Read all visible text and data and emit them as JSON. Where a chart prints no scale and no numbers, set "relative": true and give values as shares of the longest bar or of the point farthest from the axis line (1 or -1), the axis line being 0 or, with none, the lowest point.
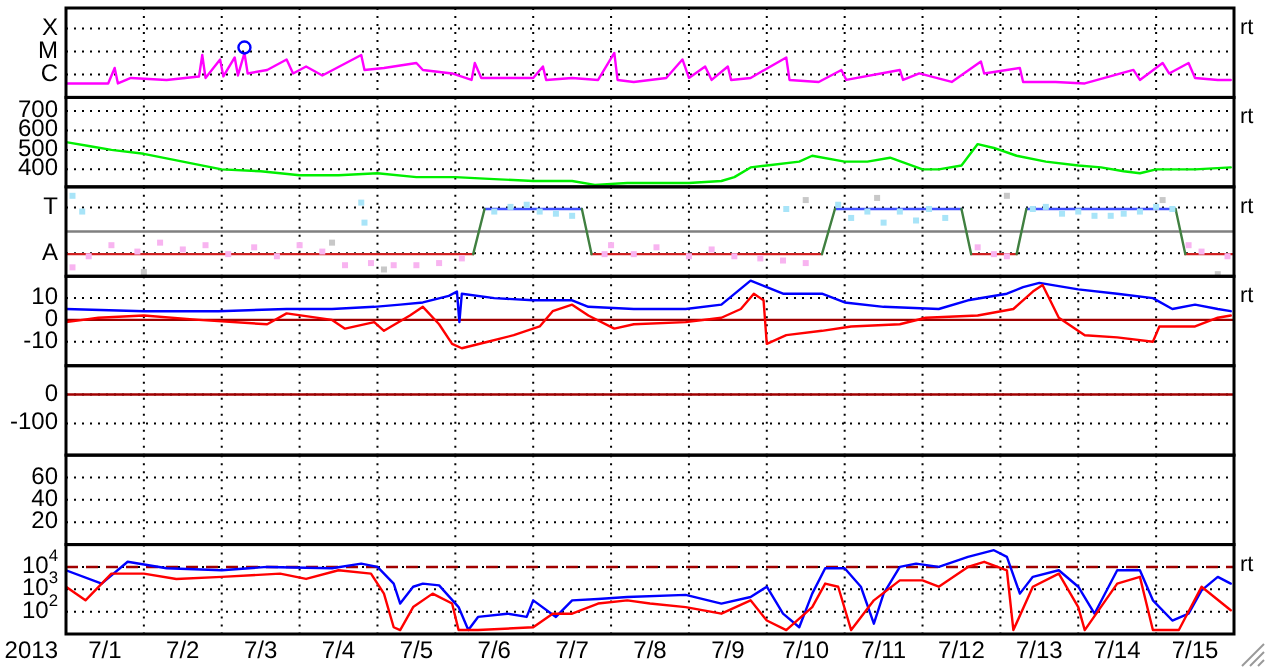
{
  "chart_data": [
    {
      "type": "line",
      "xlim": [
        "2013-07-01T00:00",
        "2013-07-16T00:00"
      ],
      "relative": true,
      "grid": true,
      "tick_labels": "y",
      "annotations": [
        "rt",
        "C",
        "M",
        "X"
      ],
      "xticks": [
        {
          "value": "2013-07-02T00:00",
          "label": null
        },
        {
          "value": "2013-07-03T00:00",
          "label": null
        },
        {
          "value": "2013-07-04T00:00",
          "label": null
        },
        {
          "value": "2013-07-05T00:00",
          "label": null
        },
        {
          "value": "2013-07-06T00:00",
          "label": null
        },
        {
          "value": "2013-07-07T00:00",
          "label": null
        },
        {
          "value": "2013-07-08T00:00",
          "label": null
        },
        {
          "value": "2013-07-09T00:00",
          "label": null
        },
        {
          "value": "2013-07-10T00:00",
          "label": null
        },
        {
          "value": "2013-07-11T00:00",
          "label": null
        },
        {
          "value": "2013-07-12T00:00",
          "label": null
        },
        {
          "value": "2013-07-13T00:00",
          "label": null
        },
        {
          "value": "2013-07-14T00:00",
          "label": null
        },
        {
          "value": "2013-07-15T00:00",
          "label": null
        }
      ],
      "series": [
        {
          "color": "#ff00ff",
          "x": [
            "2013-07-01T00:00",
            "2013-07-01T13:00",
            "2013-07-01T15:00",
            "2013-07-01T16:00",
            "2013-07-01T20:00",
            "2013-07-02T07:00",
            "2013-07-02T17:00",
            "2013-07-02T18:00",
            "2013-07-02T19:00",
            "2013-07-02T23:30",
            "2013-07-03T00:30",
            "2013-07-03T04:00",
            "2013-07-03T05:00",
            "2013-07-03T07:00",
            "2013-07-03T08:00",
            "2013-07-03T14:00",
            "2013-07-03T20:00",
            "2013-07-03T22:00",
            "2013-07-04T02:00",
            "2013-07-04T07:00",
            "2013-07-04T19:00",
            "2013-07-04T20:00",
            "2013-07-05T02:00",
            "2013-07-05T12:00",
            "2013-07-05T14:00",
            "2013-07-05T23:00",
            "2013-07-06T05:00",
            "2013-07-06T06:00",
            "2013-07-06T08:00",
            "2013-07-07T00:00",
            "2013-07-07T03:00",
            "2013-07-07T04:00",
            "2013-07-07T12:00",
            "2013-07-07T20:00",
            "2013-07-08T01:00",
            "2013-07-08T02:00",
            "2013-07-08T07:00",
            "2013-07-08T17:00",
            "2013-07-08T22:00",
            "2013-07-09T00:00",
            "2013-07-09T05:00",
            "2013-07-09T07:00",
            "2013-07-09T12:00",
            "2013-07-09T13:00",
            "2013-07-09T19:00",
            "2013-07-10T06:00",
            "2013-07-10T07:00",
            "2013-07-10T16:00",
            "2013-07-10T23:00",
            "2013-07-11T00:30",
            "2013-07-11T17:00",
            "2013-07-11T18:00",
            "2013-07-11T23:00",
            "2013-07-12T09:00",
            "2013-07-12T18:00",
            "2013-07-12T19:00",
            "2013-07-13T06:00",
            "2013-07-13T07:00",
            "2013-07-13T17:00",
            "2013-07-14T02:00",
            "2013-07-14T17:00",
            "2013-07-14T19:00",
            "2013-07-15T02:00",
            "2013-07-15T04:00",
            "2013-07-15T10:00",
            "2013-07-15T12:00",
            "2013-07-15T19:00",
            "2013-07-15T23:00"
          ],
          "values": [
            0.28,
            0.28,
            0.59,
            0.28,
            0.39,
            0.35,
            0.42,
            0.85,
            0.39,
            0.76,
            0.42,
            0.8,
            0.44,
            0.89,
            0.48,
            0.55,
            0.76,
            0.48,
            0.62,
            0.44,
            0.85,
            0.55,
            0.59,
            0.69,
            0.55,
            0.48,
            0.35,
            0.69,
            0.39,
            0.39,
            0.62,
            0.35,
            0.39,
            0.35,
            0.89,
            0.35,
            0.31,
            0.39,
            0.76,
            0.39,
            0.62,
            0.35,
            0.62,
            0.35,
            0.39,
            0.8,
            0.35,
            0.31,
            0.55,
            0.35,
            0.55,
            0.35,
            0.48,
            0.31,
            0.72,
            0.48,
            0.59,
            0.31,
            0.31,
            0.28,
            0.55,
            0.35,
            0.69,
            0.48,
            0.69,
            0.39,
            0.35,
            0.35
          ]
        },
        {
          "type": "scatter",
          "marker": "circle",
          "color": "#0000ff",
          "x": [
            "2013-07-03T07:00"
          ],
          "values": [
            1
          ]
        }
      ]
    },
    {
      "type": "line",
      "xlim": [
        "2013-07-01T00:00",
        "2013-07-16T00:00"
      ],
      "ylim": [
        310,
        770
      ],
      "grid": true,
      "tick_labels": "y",
      "annotations": [
        "rt"
      ],
      "xticks": [
        {
          "value": "2013-07-02T00:00",
          "label": null
        },
        {
          "value": "2013-07-03T00:00",
          "label": null
        },
        {
          "value": "2013-07-04T00:00",
          "label": null
        },
        {
          "value": "2013-07-05T00:00",
          "label": null
        },
        {
          "value": "2013-07-06T00:00",
          "label": null
        },
        {
          "value": "2013-07-07T00:00",
          "label": null
        },
        {
          "value": "2013-07-08T00:00",
          "label": null
        },
        {
          "value": "2013-07-09T00:00",
          "label": null
        },
        {
          "value": "2013-07-10T00:00",
          "label": null
        },
        {
          "value": "2013-07-11T00:00",
          "label": null
        },
        {
          "value": "2013-07-12T00:00",
          "label": null
        },
        {
          "value": "2013-07-13T00:00",
          "label": null
        },
        {
          "value": "2013-07-14T00:00",
          "label": null
        },
        {
          "value": "2013-07-15T00:00",
          "label": null
        }
      ],
      "yticks": [
        400,
        500,
        600,
        700
      ],
      "series": [
        {
          "color": "#00ee00",
          "x": [
            "2013-07-01T00:00",
            "2013-07-01T07:00",
            "2013-07-01T14:00",
            "2013-07-02T00:00",
            "2013-07-02T12:00",
            "2013-07-03T00:00",
            "2013-07-03T12:00",
            "2013-07-04T00:00",
            "2013-07-04T12:00",
            "2013-07-05T00:00",
            "2013-07-05T12:00",
            "2013-07-06T00:00",
            "2013-07-06T12:00",
            "2013-07-07T00:00",
            "2013-07-07T12:00",
            "2013-07-07T19:00",
            "2013-07-08T05:00",
            "2013-07-08T12:00",
            "2013-07-09T00:00",
            "2013-07-09T10:00",
            "2013-07-09T14:00",
            "2013-07-09T19:00",
            "2013-07-10T00:00",
            "2013-07-10T10:00",
            "2013-07-10T14:00",
            "2013-07-11T00:00",
            "2013-07-11T07:00",
            "2013-07-11T14:00",
            "2013-07-12T00:00",
            "2013-07-12T05:00",
            "2013-07-12T12:00",
            "2013-07-12T17:00",
            "2013-07-12T22:00",
            "2013-07-13T05:00",
            "2013-07-13T14:00",
            "2013-07-14T00:00",
            "2013-07-14T07:00",
            "2013-07-14T14:00",
            "2013-07-14T19:00",
            "2013-07-15T00:00",
            "2013-07-15T12:00",
            "2013-07-15T23:00"
          ],
          "values": [
            540,
            520,
            500,
            480,
            440,
            400,
            390,
            370,
            370,
            380,
            360,
            360,
            350,
            340,
            340,
            320,
            330,
            330,
            330,
            340,
            360,
            410,
            420,
            440,
            470,
            440,
            440,
            460,
            400,
            400,
            420,
            530,
            510,
            470,
            440,
            420,
            410,
            390,
            380,
            400,
            400,
            410
          ]
        }
      ]
    },
    {
      "type": "line",
      "xlim": [
        "2013-07-01T00:00",
        "2013-07-16T00:00"
      ],
      "relative": true,
      "grid": true,
      "tick_labels": "y",
      "annotations": [
        "rt",
        "A",
        "T"
      ],
      "xticks": [
        {
          "value": "2013-07-02T00:00",
          "label": null
        },
        {
          "value": "2013-07-03T00:00",
          "label": null
        },
        {
          "value": "2013-07-04T00:00",
          "label": null
        },
        {
          "value": "2013-07-05T00:00",
          "label": null
        },
        {
          "value": "2013-07-06T00:00",
          "label": null
        },
        {
          "value": "2013-07-07T00:00",
          "label": null
        },
        {
          "value": "2013-07-08T00:00",
          "label": null
        },
        {
          "value": "2013-07-09T00:00",
          "label": null
        },
        {
          "value": "2013-07-10T00:00",
          "label": null
        },
        {
          "value": "2013-07-11T00:00",
          "label": null
        },
        {
          "value": "2013-07-12T00:00",
          "label": null
        },
        {
          "value": "2013-07-13T00:00",
          "label": null
        },
        {
          "value": "2013-07-14T00:00",
          "label": null
        },
        {
          "value": "2013-07-15T00:00",
          "label": null
        }
      ],
      "ref_lines": [
        {
          "axis": "y",
          "value": 0,
          "color": "#808080"
        }
      ],
      "series": [
        {
          "type": "scatter",
          "marker": "square",
          "color": "#f8b4f0",
          "x": [
            "2013-07-01T02:00",
            "2013-07-01T07:00",
            "2013-07-01T14:00",
            "2013-07-01T22:00",
            "2013-07-02T05:00",
            "2013-07-02T12:00",
            "2013-07-02T19:00",
            "2013-07-03T02:00",
            "2013-07-03T10:00",
            "2013-07-03T17:00",
            "2013-07-04T00:00",
            "2013-07-04T07:00",
            "2013-07-04T14:00",
            "2013-07-04T22:00",
            "2013-07-05T05:00",
            "2013-07-05T12:00",
            "2013-07-05T19:00",
            "2013-07-06T02:00",
            "2013-07-07T22:00",
            "2013-07-08T00:00",
            "2013-07-08T07:00",
            "2013-07-08T14:00",
            "2013-07-09T00:00",
            "2013-07-09T07:00",
            "2013-07-09T14:00",
            "2013-07-09T22:00",
            "2013-07-10T05:00",
            "2013-07-10T12:00",
            "2013-07-12T17:00",
            "2013-07-12T22:00",
            "2013-07-13T02:00",
            "2013-07-15T10:00",
            "2013-07-15T14:00",
            "2013-07-15T22:00"
          ],
          "values": [
            -0.84,
            -0.58,
            -0.32,
            -0.47,
            -0.26,
            -0.42,
            -0.32,
            -0.53,
            -0.37,
            -0.58,
            -0.32,
            -0.47,
            -0.79,
            -0.74,
            -0.79,
            -0.79,
            -0.74,
            -0.63,
            -0.53,
            -0.32,
            -0.53,
            -0.37,
            -0.58,
            -0.42,
            -0.58,
            -0.63,
            -0.68,
            -0.74,
            -0.37,
            -0.53,
            -0.58,
            -0.32,
            -0.47,
            -0.58
          ]
        },
        {
          "type": "scatter",
          "marker": "square",
          "color": "#a8e4f8",
          "x": [
            "2013-07-01T02:00",
            "2013-07-01T05:00",
            "2013-07-04T19:00",
            "2013-07-04T20:00",
            "2013-07-06T12:00",
            "2013-07-06T17:00",
            "2013-07-06T22:00",
            "2013-07-07T02:00",
            "2013-07-07T07:00",
            "2013-07-07T12:00",
            "2013-07-10T06:00",
            "2013-07-10T22:00",
            "2013-07-11T02:00",
            "2013-07-11T07:00",
            "2013-07-11T12:00",
            "2013-07-11T17:00",
            "2013-07-11T22:00",
            "2013-07-12T02:00",
            "2013-07-12T07:00",
            "2013-07-13T10:00",
            "2013-07-13T14:00",
            "2013-07-13T19:00",
            "2013-07-14T00:00",
            "2013-07-14T05:00",
            "2013-07-14T10:00",
            "2013-07-14T14:00",
            "2013-07-14T19:00",
            "2013-07-15T00:00",
            "2013-07-15T05:00"
          ],
          "values": [
            0.84,
            0.47,
            0.68,
            0.21,
            0.47,
            0.58,
            0.63,
            0.47,
            0.42,
            0.37,
            0.53,
            0.63,
            0.32,
            0.47,
            0.21,
            0.47,
            0.26,
            0.53,
            0.32,
            0.53,
            0.58,
            0.42,
            0.47,
            0.37,
            0.37,
            0.42,
            0.47,
            0.58,
            0.53
          ]
        },
        {
          "type": "scatter",
          "marker": "square",
          "color": "#c8c8c8",
          "x": [
            "2013-07-02T00:00",
            "2013-07-04T10:00",
            "2013-07-05T02:00",
            "2013-07-10T12:00",
            "2013-07-11T10:00",
            "2013-07-13T02:00",
            "2013-07-15T02:00",
            "2013-07-15T19:00"
          ],
          "values": [
            -0.95,
            -0.26,
            -0.89,
            0.74,
            0.79,
            0.84,
            0.74,
            -1
          ]
        },
        {
          "color": "#d02020",
          "x": [
            "2013-07-01T00:00",
            "2013-07-06T05:30",
            "2013-07-06T06:00",
            "2013-07-07T18:00",
            "2013-07-10T17:00",
            "2013-07-10T18:00",
            "2013-07-12T15:00",
            "2013-07-13T05:00",
            "2013-07-13T06:00",
            "2013-07-15T09:00",
            "2013-07-16T00:00"
          ],
          "values": [
            -0.53,
            -0.53,
            null,
            -0.53,
            -0.53,
            null,
            -0.53,
            -0.53,
            null,
            -0.53,
            -0.53
          ]
        },
        {
          "color": "#4050ff",
          "x": [
            "2013-07-06T09:00",
            "2013-07-07T15:00",
            "2013-07-07T16:00",
            "2013-07-10T21:00",
            "2013-07-12T12:00",
            "2013-07-12T13:00",
            "2013-07-13T08:00",
            "2013-07-15T06:00"
          ],
          "values": [
            0.53,
            0.53,
            null,
            0.53,
            0.53,
            null,
            0.53,
            0.53
          ]
        },
        {
          "color": "#408040",
          "x": [
            "2013-07-06T05:30",
            "2013-07-06T09:00",
            "2013-07-06T10:00",
            "2013-07-07T15:00",
            "2013-07-07T18:00",
            "2013-07-07T19:00",
            "2013-07-10T17:00",
            "2013-07-10T21:00",
            "2013-07-10T22:00",
            "2013-07-12T12:00",
            "2013-07-12T15:00",
            "2013-07-12T16:00",
            "2013-07-13T05:00",
            "2013-07-13T08:00",
            "2013-07-13T09:00",
            "2013-07-15T06:00",
            "2013-07-15T09:00"
          ],
          "values": [
            -0.53,
            0.53,
            null,
            0.53,
            -0.53,
            null,
            -0.53,
            0.53,
            null,
            0.53,
            -0.53,
            null,
            -0.53,
            0.53,
            null,
            0.53,
            -0.53
          ]
        }
      ]
    },
    {
      "type": "line",
      "xlim": [
        "2013-07-01T00:00",
        "2013-07-16T00:00"
      ],
      "ylim": [
        -21,
        20
      ],
      "grid": true,
      "tick_labels": "y",
      "annotations": [
        "rt"
      ],
      "xticks": [
        {
          "value": "2013-07-02T00:00",
          "label": null
        },
        {
          "value": "2013-07-03T00:00",
          "label": null
        },
        {
          "value": "2013-07-04T00:00",
          "label": null
        },
        {
          "value": "2013-07-05T00:00",
          "label": null
        },
        {
          "value": "2013-07-06T00:00",
          "label": null
        },
        {
          "value": "2013-07-07T00:00",
          "label": null
        },
        {
          "value": "2013-07-08T00:00",
          "label": null
        },
        {
          "value": "2013-07-09T00:00",
          "label": null
        },
        {
          "value": "2013-07-10T00:00",
          "label": null
        },
        {
          "value": "2013-07-11T00:00",
          "label": null
        },
        {
          "value": "2013-07-12T00:00",
          "label": null
        },
        {
          "value": "2013-07-13T00:00",
          "label": null
        },
        {
          "value": "2013-07-14T00:00",
          "label": null
        },
        {
          "value": "2013-07-15T00:00",
          "label": null
        }
      ],
      "yticks": [
        -10,
        0,
        10
      ],
      "ref_lines": [
        {
          "axis": "y",
          "value": 0,
          "color": "#a00000"
        }
      ],
      "series": [
        {
          "color": "#0000ff",
          "x": [
            "2013-07-01T00:00",
            "2013-07-02T00:00",
            "2013-07-02T23:00",
            "2013-07-03T20:00",
            "2013-07-04T10:00",
            "2013-07-04T23:00",
            "2013-07-05T07:00",
            "2013-07-05T14:00",
            "2013-07-05T22:00",
            "2013-07-06T00:30",
            "2013-07-06T01:15",
            "2013-07-06T02:00",
            "2013-07-06T12:00",
            "2013-07-07T00:00",
            "2013-07-07T12:00",
            "2013-07-07T17:00",
            "2013-07-08T07:00",
            "2013-07-08T23:00",
            "2013-07-09T10:00",
            "2013-07-09T19:00",
            "2013-07-10T00:00",
            "2013-07-10T05:00",
            "2013-07-10T17:00",
            "2013-07-11T00:00",
            "2013-07-11T12:00",
            "2013-07-12T05:00",
            "2013-07-12T14:00",
            "2013-07-13T02:00",
            "2013-07-13T07:00",
            "2013-07-13T12:00",
            "2013-07-14T00:00",
            "2013-07-14T12:00",
            "2013-07-14T23:00",
            "2013-07-15T05:00",
            "2013-07-15T12:00",
            "2013-07-15T19:00",
            "2013-07-15T23:00"
          ],
          "values": [
            5,
            4,
            4,
            5,
            5,
            6,
            7,
            8,
            11,
            13,
            -1,
            12,
            10,
            9,
            9,
            6,
            5,
            5,
            7,
            18,
            15,
            12,
            12,
            8,
            6,
            5,
            9,
            12,
            15,
            17,
            14,
            12,
            10,
            5,
            7,
            5,
            4
          ]
        },
        {
          "color": "#ff0000",
          "x": [
            "2013-07-01T00:00",
            "2013-07-01T10:00",
            "2013-07-02T00:00",
            "2013-07-02T17:00",
            "2013-07-03T14:00",
            "2013-07-03T20:00",
            "2013-07-04T10:00",
            "2013-07-04T14:00",
            "2013-07-04T23:00",
            "2013-07-05T02:00",
            "2013-07-05T10:00",
            "2013-07-05T14:00",
            "2013-07-05T19:00",
            "2013-07-05T23:00",
            "2013-07-06T02:00",
            "2013-07-06T10:00",
            "2013-07-06T18:00",
            "2013-07-07T02:00",
            "2013-07-07T06:00",
            "2013-07-07T12:00",
            "2013-07-07T17:00",
            "2013-07-08T01:00",
            "2013-07-08T07:00",
            "2013-07-08T23:00",
            "2013-07-09T10:00",
            "2013-07-09T16:00",
            "2013-07-09T20:00",
            "2013-07-09T23:00",
            "2013-07-10T00:00",
            "2013-07-10T06:00",
            "2013-07-10T17:00",
            "2013-07-11T02:00",
            "2013-07-11T17:00",
            "2013-07-12T01:00",
            "2013-07-12T17:00",
            "2013-07-13T04:00",
            "2013-07-13T10:00",
            "2013-07-13T13:00",
            "2013-07-13T18:00",
            "2013-07-14T02:00",
            "2013-07-14T12:00",
            "2013-07-14T23:00",
            "2013-07-15T01:00",
            "2013-07-15T12:00",
            "2013-07-15T19:00",
            "2013-07-15T23:00"
          ],
          "values": [
            -1,
            1,
            2,
            0,
            -2,
            3,
            0,
            -4,
            -1,
            -5,
            2,
            6,
            -2,
            -11,
            -13,
            -10,
            -7,
            -3,
            4,
            7,
            2,
            -4,
            -2,
            -1,
            1,
            5,
            12,
            9,
            -11,
            -7,
            -5,
            -3,
            -2,
            1,
            2,
            5,
            13,
            16,
            1,
            -7,
            -8,
            -10,
            -3,
            -3,
            1,
            2
          ]
        }
      ]
    },
    {
      "type": "line",
      "xlim": [
        "2013-07-01T00:00",
        "2013-07-16T00:00"
      ],
      "ylim": [
        -210,
        100
      ],
      "grid": true,
      "tick_labels": "y",
      "xticks": [
        {
          "value": "2013-07-02T00:00",
          "label": null
        },
        {
          "value": "2013-07-03T00:00",
          "label": null
        },
        {
          "value": "2013-07-04T00:00",
          "label": null
        },
        {
          "value": "2013-07-05T00:00",
          "label": null
        },
        {
          "value": "2013-07-06T00:00",
          "label": null
        },
        {
          "value": "2013-07-07T00:00",
          "label": null
        },
        {
          "value": "2013-07-08T00:00",
          "label": null
        },
        {
          "value": "2013-07-09T00:00",
          "label": null
        },
        {
          "value": "2013-07-10T00:00",
          "label": null
        },
        {
          "value": "2013-07-11T00:00",
          "label": null
        },
        {
          "value": "2013-07-12T00:00",
          "label": null
        },
        {
          "value": "2013-07-13T00:00",
          "label": null
        },
        {
          "value": "2013-07-14T00:00",
          "label": null
        },
        {
          "value": "2013-07-15T00:00",
          "label": null
        }
      ],
      "yticks": [
        -100,
        0
      ],
      "ref_lines": [
        {
          "axis": "y",
          "value": 0,
          "color": "#a00000"
        }
      ]
    },
    {
      "type": "line",
      "xlim": [
        "2013-07-01T00:00",
        "2013-07-16T00:00"
      ],
      "ylim": [
        0,
        80
      ],
      "grid": true,
      "tick_labels": "y",
      "xticks": [
        {
          "value": "2013-07-02T00:00",
          "label": null
        },
        {
          "value": "2013-07-03T00:00",
          "label": null
        },
        {
          "value": "2013-07-04T00:00",
          "label": null
        },
        {
          "value": "2013-07-05T00:00",
          "label": null
        },
        {
          "value": "2013-07-06T00:00",
          "label": null
        },
        {
          "value": "2013-07-07T00:00",
          "label": null
        },
        {
          "value": "2013-07-08T00:00",
          "label": null
        },
        {
          "value": "2013-07-09T00:00",
          "label": null
        },
        {
          "value": "2013-07-10T00:00",
          "label": null
        },
        {
          "value": "2013-07-11T00:00",
          "label": null
        },
        {
          "value": "2013-07-12T00:00",
          "label": null
        },
        {
          "value": "2013-07-13T00:00",
          "label": null
        },
        {
          "value": "2013-07-14T00:00",
          "label": null
        },
        {
          "value": "2013-07-15T00:00",
          "label": null
        }
      ],
      "yticks": [
        20,
        40,
        60
      ]
    },
    {
      "type": "line",
      "xlim": [
        "2013-07-01T00:00",
        "2013-07-16T00:00"
      ],
      "ylim": [
        10,
        100000
      ],
      "log": true,
      "grid": true,
      "xlabel": "2013",
      "annotations": [
        "rt"
      ],
      "xticks": [
        {
          "value": "2013-07-01T12:00",
          "label": "7/1"
        },
        {
          "value": "2013-07-02T00:00",
          "label": null
        },
        {
          "value": "2013-07-02T12:00",
          "label": "7/2"
        },
        {
          "value": "2013-07-03T00:00",
          "label": null
        },
        {
          "value": "2013-07-03T12:00",
          "label": "7/3"
        },
        {
          "value": "2013-07-04T00:00",
          "label": null
        },
        {
          "value": "2013-07-04T12:00",
          "label": "7/4"
        },
        {
          "value": "2013-07-05T00:00",
          "label": null
        },
        {
          "value": "2013-07-05T12:00",
          "label": "7/5"
        },
        {
          "value": "2013-07-06T00:00",
          "label": null
        },
        {
          "value": "2013-07-06T12:00",
          "label": "7/6"
        },
        {
          "value": "2013-07-07T00:00",
          "label": null
        },
        {
          "value": "2013-07-07T12:00",
          "label": "7/7"
        },
        {
          "value": "2013-07-08T00:00",
          "label": null
        },
        {
          "value": "2013-07-08T12:00",
          "label": "7/8"
        },
        {
          "value": "2013-07-09T00:00",
          "label": null
        },
        {
          "value": "2013-07-09T12:00",
          "label": "7/9"
        },
        {
          "value": "2013-07-10T00:00",
          "label": null
        },
        {
          "value": "2013-07-10T12:00",
          "label": "7/10"
        },
        {
          "value": "2013-07-11T00:00",
          "label": null
        },
        {
          "value": "2013-07-11T12:00",
          "label": "7/11"
        },
        {
          "value": "2013-07-12T00:00",
          "label": null
        },
        {
          "value": "2013-07-12T12:00",
          "label": "7/12"
        },
        {
          "value": "2013-07-13T00:00",
          "label": null
        },
        {
          "value": "2013-07-13T12:00",
          "label": "7/13"
        },
        {
          "value": "2013-07-14T00:00",
          "label": null
        },
        {
          "value": "2013-07-14T12:00",
          "label": "7/14"
        },
        {
          "value": "2013-07-15T00:00",
          "label": null
        },
        {
          "value": "2013-07-15T12:00",
          "label": "7/15"
        }
      ],
      "yticks": [
        {
          "value": 100,
          "label": "10$^{2}$"
        },
        {
          "value": 1000,
          "label": "10$^{3}$"
        },
        {
          "value": 10000,
          "label": "10$^{4}$"
        }
      ],
      "ref_lines": [
        {
          "axis": "y",
          "value": 10000,
          "color": "#a00000",
          "line_style": "dashed"
        }
      ],
      "series": [
        {
          "color": "#0000ff",
          "x": [
            "2013-07-01T00:00",
            "2013-07-01T11:00",
            "2013-07-01T19:00",
            "2013-07-02T07:00",
            "2013-07-03T00:00",
            "2013-07-03T14:00",
            "2013-07-04T10:00",
            "2013-07-04T19:00",
            "2013-07-05T00:00",
            "2013-07-05T05:00",
            "2013-07-05T07:00",
            "2013-07-05T11:00",
            "2013-07-05T14:00",
            "2013-07-05T19:00",
            "2013-07-06T01:00",
            "2013-07-06T04:00",
            "2013-07-06T07:00",
            "2013-07-06T16:00",
            "2013-07-06T22:00",
            "2013-07-07T00:00",
            "2013-07-07T07:00",
            "2013-07-07T12:00",
            "2013-07-07T20:00",
            "2013-07-08T05:00",
            "2013-07-08T23:00",
            "2013-07-09T10:00",
            "2013-07-09T19:00",
            "2013-07-10T00:00",
            "2013-07-10T05:00",
            "2013-07-10T10:00",
            "2013-07-10T14:00",
            "2013-07-10T18:00",
            "2013-07-11T00:00",
            "2013-07-11T05:00",
            "2013-07-11T09:00",
            "2013-07-11T12:00",
            "2013-07-11T17:00",
            "2013-07-11T22:00",
            "2013-07-12T05:00",
            "2013-07-12T14:00",
            "2013-07-12T22:00",
            "2013-07-13T02:00",
            "2013-07-13T06:00",
            "2013-07-13T10:00",
            "2013-07-13T18:00",
            "2013-07-14T00:00",
            "2013-07-14T05:00",
            "2013-07-14T12:00",
            "2013-07-14T19:00",
            "2013-07-14T23:00",
            "2013-07-15T05:00",
            "2013-07-15T10:00",
            "2013-07-15T14:00",
            "2013-07-15T19:00",
            "2013-07-15T23:00"
          ],
          "values": [
            7100,
            1800,
            17000,
            8700,
            7100,
            10000,
            8700,
            14000,
            10000,
            1800,
            230,
            1300,
            1800,
            1500,
            160,
            15,
            58,
            81,
            58,
            320,
            58,
            320,
            370,
            450,
            560,
            230,
            450,
            1300,
            81,
            20,
            640,
            8700,
            8700,
            1300,
            29,
            640,
            10000,
            14000,
            10000,
            28000,
            56000,
            28000,
            640,
            3600,
            7100,
            1300,
            81,
            7100,
            7100,
            320,
            40,
            81,
            900,
            3600,
            1800
          ]
        },
        {
          "color": "#ff0000",
          "x": [
            "2013-07-01T00:00",
            "2013-07-01T06:00",
            "2013-07-01T14:00",
            "2013-07-02T00:00",
            "2013-07-02T10:00",
            "2013-07-03T00:00",
            "2013-07-03T18:00",
            "2013-07-04T02:00",
            "2013-07-04T12:00",
            "2013-07-04T22:00",
            "2013-07-05T02:00",
            "2013-07-05T05:00",
            "2013-07-05T07:00",
            "2013-07-05T11:00",
            "2013-07-05T17:00",
            "2013-07-05T23:00",
            "2013-07-06T01:00",
            "2013-07-06T07:00",
            "2013-07-07T00:00",
            "2013-07-07T06:00",
            "2013-07-07T12:00",
            "2013-07-07T20:00",
            "2013-07-08T05:00",
            "2013-07-08T12:00",
            "2013-07-08T23:00",
            "2013-07-09T10:00",
            "2013-07-09T19:00",
            "2013-07-10T00:00",
            "2013-07-10T06:00",
            "2013-07-10T14:00",
            "2013-07-10T18:00",
            "2013-07-10T22:00",
            "2013-07-11T02:00",
            "2013-07-11T09:00",
            "2013-07-11T17:00",
            "2013-07-12T00:00",
            "2013-07-12T05:00",
            "2013-07-12T14:00",
            "2013-07-12T19:00",
            "2013-07-13T02:00",
            "2013-07-13T04:00",
            "2013-07-13T10:00",
            "2013-07-13T18:00",
            "2013-07-14T00:00",
            "2013-07-14T02:00",
            "2013-07-14T12:00",
            "2013-07-14T19:00",
            "2013-07-14T23:00",
            "2013-07-15T07:00",
            "2013-07-15T14:00",
            "2013-07-15T23:00"
          ],
          "values": [
            1300,
            320,
            5000,
            5000,
            2900,
            3600,
            5000,
            2900,
            7100,
            5000,
            640,
            20,
            15,
            160,
            640,
            230,
            15,
            15,
            20,
            81,
            81,
            230,
            320,
            230,
            160,
            81,
            320,
            40,
            15,
            160,
            1800,
            1300,
            15,
            320,
            2500,
            2500,
            1300,
            10000,
            17000,
            7100,
            15,
            1300,
            5000,
            160,
            15,
            1800,
            3600,
            15,
            15,
            1300,
            115
          ]
        }
      ]
    }
  ]
}
